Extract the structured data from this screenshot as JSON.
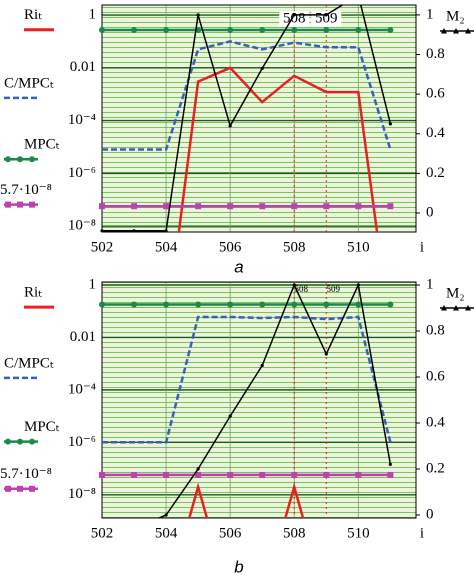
{
  "chart_data": [
    {
      "type": "line",
      "caption": "a",
      "xlabel": "i",
      "legend": "left",
      "grid": true,
      "ylog": true,
      "x": [
        502,
        503,
        504,
        505,
        506,
        507,
        508,
        509,
        510,
        511
      ],
      "xlim": [
        502,
        511.8
      ],
      "xticks": [
        502,
        504,
        506,
        508,
        510
      ],
      "ylim": [
        6e-09,
        2.4
      ],
      "yticks": [
        1,
        0.01,
        {
          "value": 0.0001,
          "label": "10⁻⁴"
        },
        {
          "value": 1e-06,
          "label": "10⁻⁶"
        },
        {
          "value": 1e-08,
          "label": "10⁻⁸"
        }
      ],
      "y2lim": [
        -0.096,
        1.05
      ],
      "y2ticks": [
        0,
        0.2,
        0.4,
        0.6,
        0.8,
        1
      ],
      "vlines": [
        {
          "value": 508,
          "label": "508"
        },
        {
          "value": 509,
          "label": "509"
        }
      ],
      "series": [
        {
          "name": "Riₜ",
          "color": "#e82020",
          "values": [
            null,
            null,
            1e-12,
            0.003,
            0.01,
            0.0005,
            0.005,
            0.0012,
            0.0012,
            1e-12
          ]
        },
        {
          "name": "C/MPCₜ",
          "color": "#3a5fb8",
          "dash": true,
          "values": [
            8e-06,
            8e-06,
            8e-06,
            0.05,
            0.1,
            0.05,
            0.09,
            0.06,
            0.06,
            8e-06
          ]
        },
        {
          "name": "MPCₜ",
          "color": "#1a8a4a",
          "marker": "circle",
          "values": [
            0.27,
            0.27,
            0.27,
            0.27,
            0.27,
            0.27,
            0.27,
            0.27,
            0.27,
            0.27
          ]
        },
        {
          "name": "5.7·10⁻⁸",
          "color": "#c040b0",
          "marker": "square",
          "values": [
            5.7e-08,
            5.7e-08,
            5.7e-08,
            5.7e-08,
            5.7e-08,
            5.7e-08,
            5.7e-08,
            5.7e-08,
            5.7e-08,
            5.7e-08
          ]
        },
        {
          "name": "M₂",
          "color": "#000000",
          "marker": "triangle",
          "axis": "y2",
          "values": [
            -0.09,
            -0.09,
            -0.09,
            1.0,
            0.44,
            0.73,
            1.0,
            1.0,
            1.1,
            0.45
          ]
        }
      ]
    },
    {
      "type": "line",
      "caption": "b",
      "xlabel": "i",
      "legend": "left",
      "grid": true,
      "ylog": true,
      "x": [
        502,
        503,
        504,
        505,
        506,
        507,
        508,
        509,
        510,
        511
      ],
      "xlim": [
        502,
        511.8
      ],
      "xticks": [
        502,
        504,
        506,
        508,
        510
      ],
      "ylim": [
        1.3e-09,
        1.3
      ],
      "yticks": [
        1,
        0.01,
        {
          "value": 0.0001,
          "label": "10⁻⁴"
        },
        {
          "value": 1e-06,
          "label": "10⁻⁶"
        },
        {
          "value": 1e-08,
          "label": "10⁻⁸"
        }
      ],
      "y2lim": [
        -0.013,
        1.013
      ],
      "y2ticks": [
        0,
        0.2,
        0.4,
        0.6,
        0.8,
        1
      ],
      "vlines": [
        {
          "value": 508,
          "label": "508"
        },
        {
          "value": 509,
          "label": "509"
        }
      ],
      "series": [
        {
          "name": "Riₜ",
          "color": "#e82020",
          "values": [
            null,
            null,
            1e-12,
            2e-08,
            1e-12,
            1e-12,
            2e-08,
            1e-12,
            null,
            null
          ]
        },
        {
          "name": "C/MPCₜ",
          "color": "#3a5fb8",
          "dash": true,
          "values": [
            1e-06,
            1e-06,
            1e-06,
            0.06,
            0.06,
            0.055,
            0.06,
            0.05,
            0.06,
            1e-06
          ]
        },
        {
          "name": "MPCₜ",
          "color": "#1a8a4a",
          "marker": "circle",
          "values": [
            0.18,
            0.18,
            0.18,
            0.18,
            0.18,
            0.18,
            0.18,
            0.18,
            0.18,
            0.18
          ]
        },
        {
          "name": "5.7·10⁻⁸",
          "color": "#c040b0",
          "marker": "square",
          "values": [
            5.7e-08,
            5.7e-08,
            5.7e-08,
            5.7e-08,
            5.7e-08,
            5.7e-08,
            5.7e-08,
            5.7e-08,
            5.7e-08,
            5.7e-08
          ]
        },
        {
          "name": "M₂",
          "color": "#000000",
          "marker": "triangle",
          "axis": "y2",
          "values": [
            -0.06,
            -0.06,
            0.0,
            0.2,
            0.43,
            0.65,
            1.0,
            0.7,
            1.0,
            0.22
          ]
        }
      ]
    }
  ]
}
